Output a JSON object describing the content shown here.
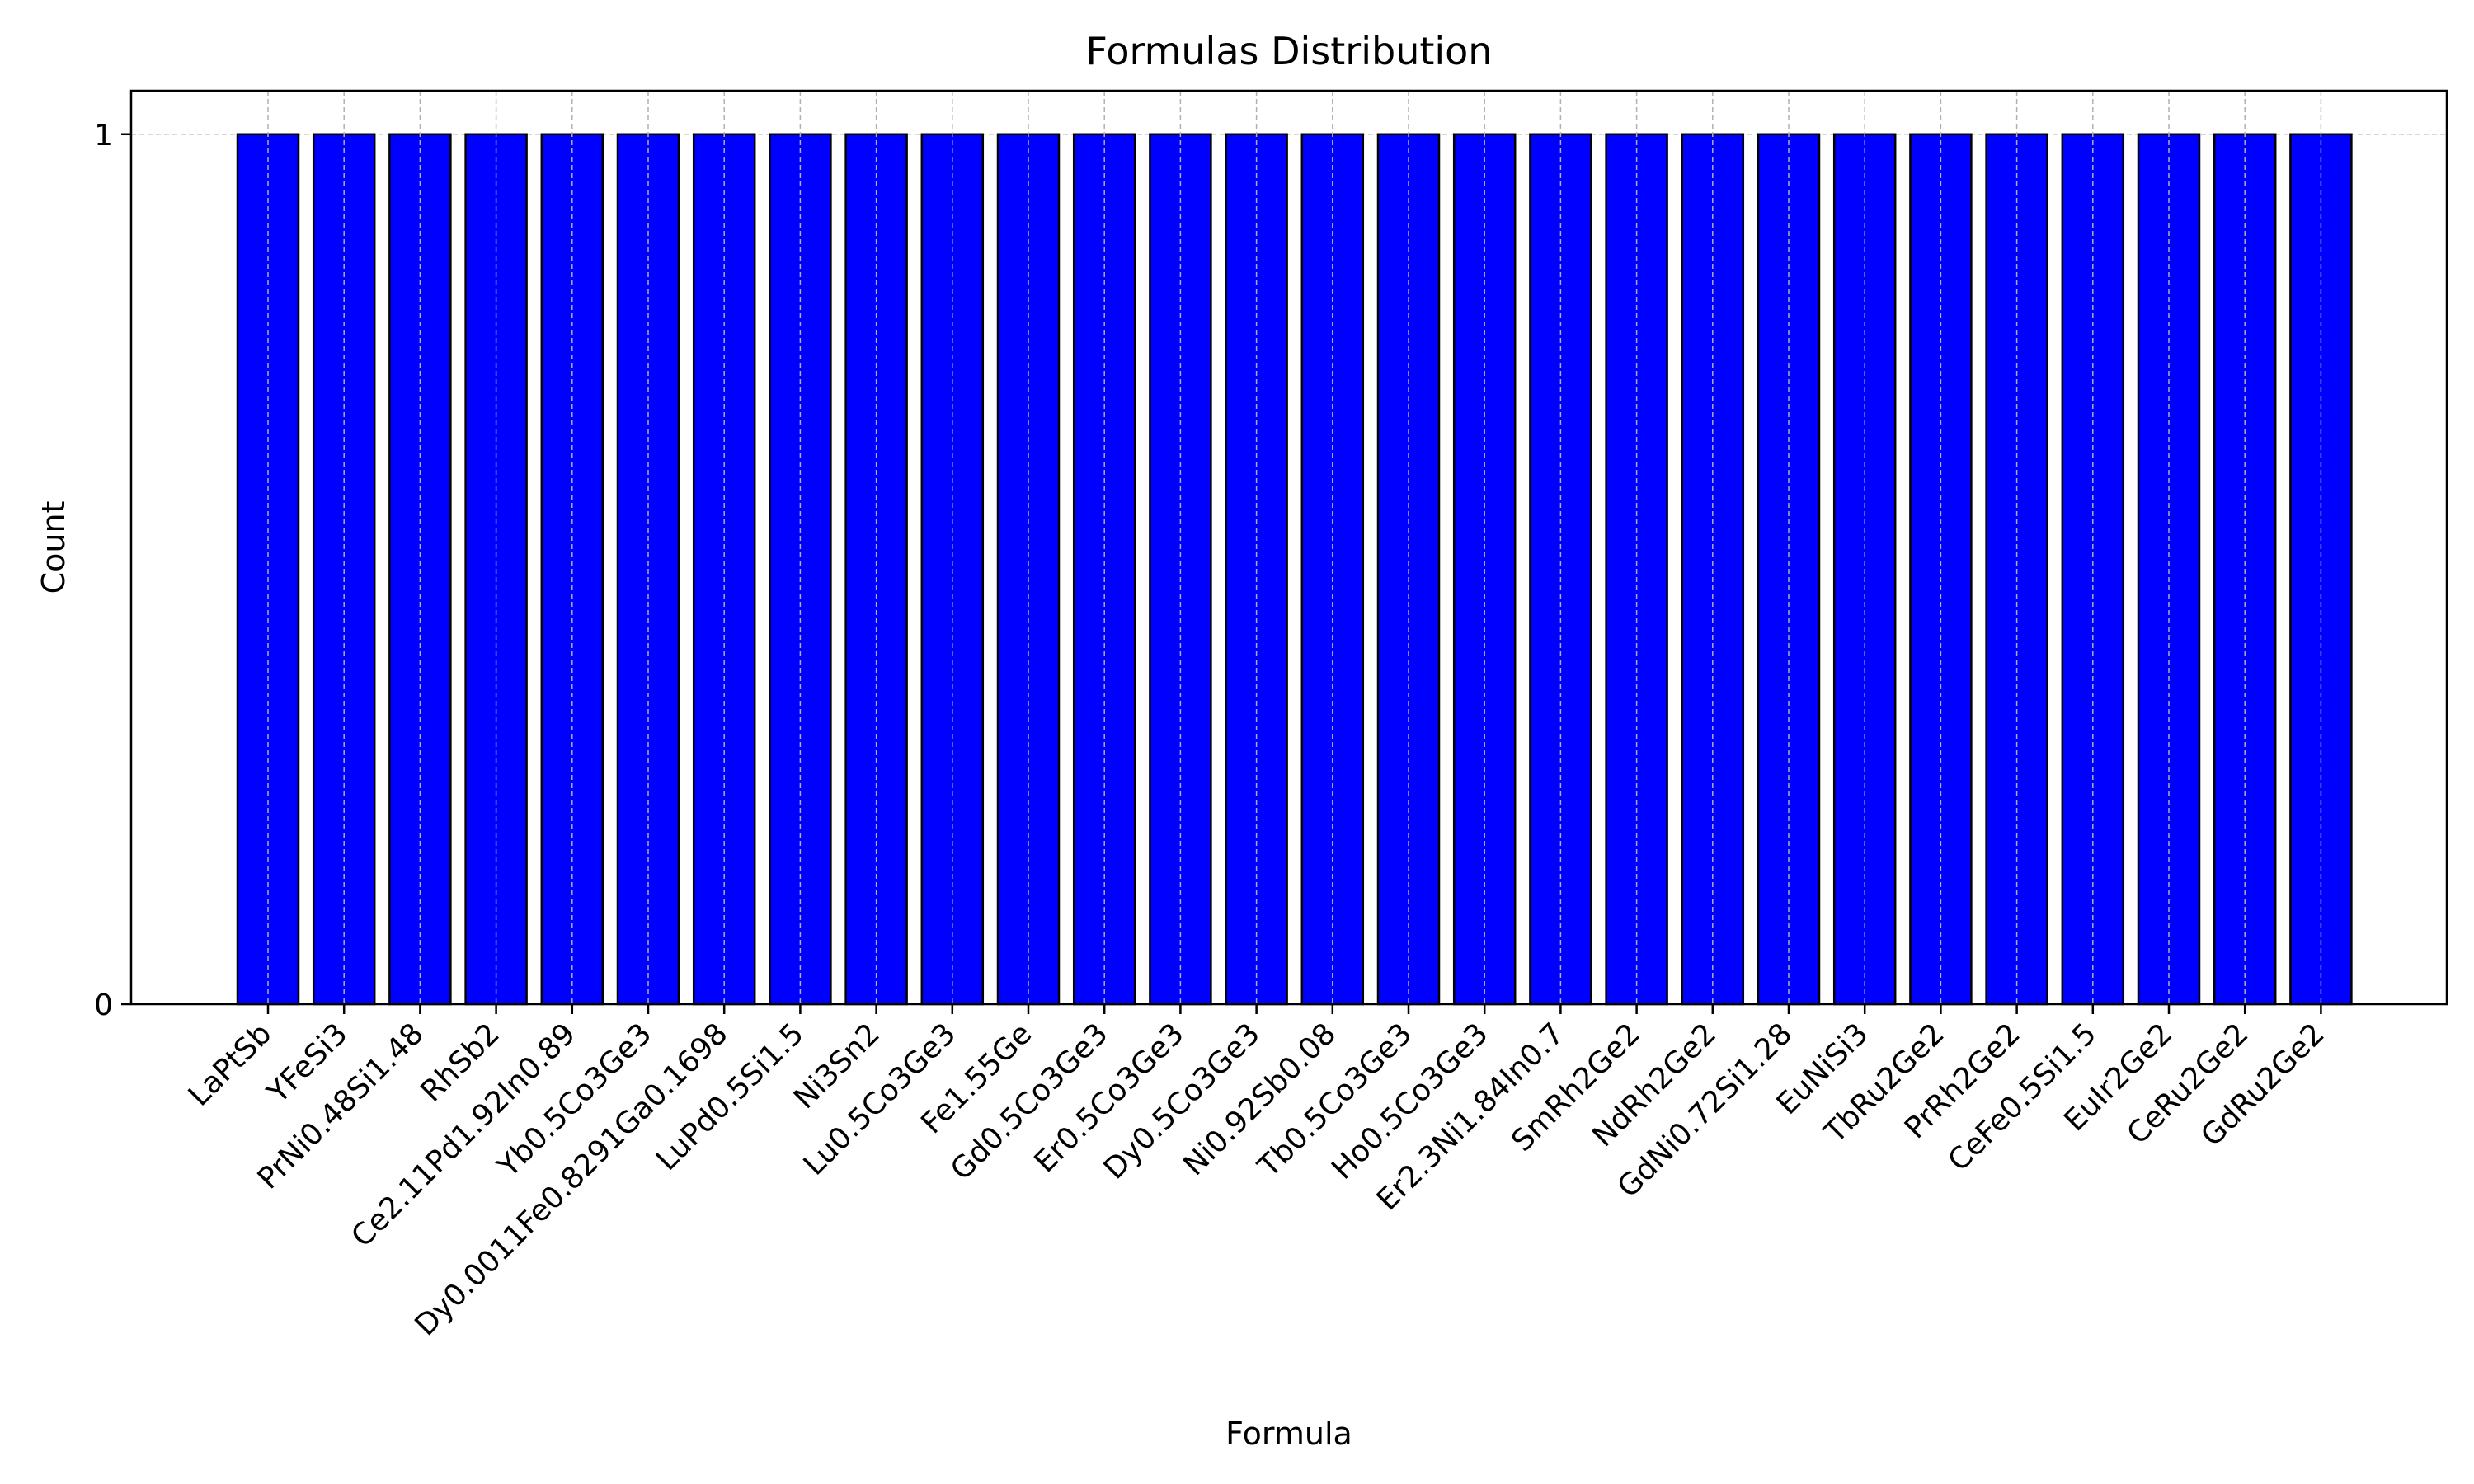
{
  "chart_data": {
    "type": "bar",
    "title": "Formulas Distribution",
    "xlabel": "Formula",
    "ylabel": "Count",
    "categories": [
      "LaPtSb",
      "YFeSi3",
      "PrNi0.48Si1.48",
      "RhSb2",
      "Ce2.11Pd1.92In0.89",
      "Yb0.5Co3Ge3",
      "Dy0.0011Fe0.8291Ga0.1698",
      "LuPd0.5Si1.5",
      "Ni3Sn2",
      "Lu0.5Co3Ge3",
      "Fe1.55Ge",
      "Gd0.5Co3Ge3",
      "Er0.5Co3Ge3",
      "Dy0.5Co3Ge3",
      "Ni0.92Sb0.08",
      "Tb0.5Co3Ge3",
      "Ho0.5Co3Ge3",
      "Er2.3Ni1.84In0.7",
      "SmRh2Ge2",
      "NdRh2Ge2",
      "GdNi0.72Si1.28",
      "EuNiSi3",
      "TbRu2Ge2",
      "PrRh2Ge2",
      "CeFe0.5Si1.5",
      "EuIr2Ge2",
      "CeRu2Ge2",
      "GdRu2Ge2"
    ],
    "values": [
      1,
      1,
      1,
      1,
      1,
      1,
      1,
      1,
      1,
      1,
      1,
      1,
      1,
      1,
      1,
      1,
      1,
      1,
      1,
      1,
      1,
      1,
      1,
      1,
      1,
      1,
      1,
      1
    ],
    "yticks": [
      "0",
      "1"
    ],
    "ylim": [
      0,
      1.05
    ],
    "grid": true,
    "bar_color": "#0000ff",
    "bar_edge_color": "#000000",
    "grid_color": "#b0b0b0"
  }
}
